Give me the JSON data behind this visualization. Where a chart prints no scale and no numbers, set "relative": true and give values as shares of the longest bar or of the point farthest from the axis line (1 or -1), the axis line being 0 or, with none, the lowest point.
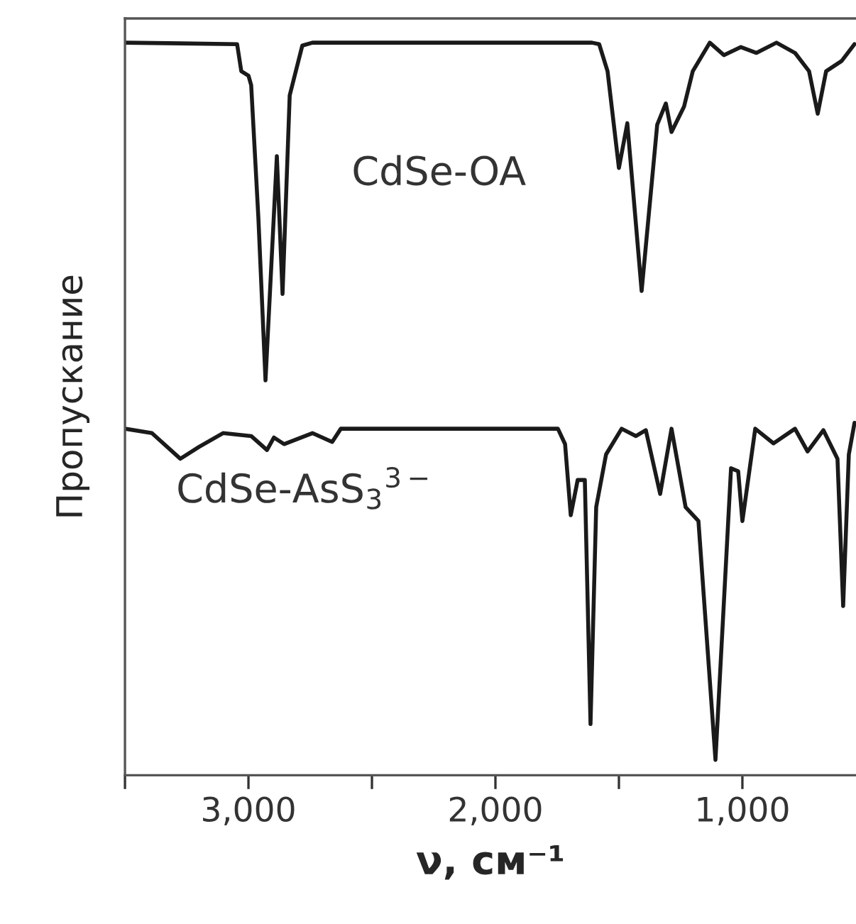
{
  "chart_data": {
    "type": "line",
    "relative": true,
    "xlabel": "ν, см⁻¹",
    "ylabel": "Пропускание",
    "xlim": [
      3500,
      540
    ],
    "xticks": [
      {
        "value": 3500,
        "label": null
      },
      {
        "value": 3000,
        "label": "3,000"
      },
      {
        "value": 2500,
        "label": null
      },
      {
        "value": 2000,
        "label": "2,000"
      },
      {
        "value": 1500,
        "label": null
      },
      {
        "value": 1000,
        "label": "1,000"
      }
    ],
    "tick_labels": "x",
    "grid": false,
    "legend": false,
    "marker": "none",
    "line_style": "solid",
    "series": [
      {
        "name": "CdSe-OA",
        "color": "#1a1a1a",
        "x": [
          3500,
          3046,
          3029,
          3000,
          2989,
          2960,
          2931,
          2885,
          2862,
          2833,
          2782,
          2741,
          1609,
          1580,
          1546,
          1500,
          1466,
          1408,
          1345,
          1310,
          1287,
          1236,
          1201,
          1132,
          1075,
          1006,
          943,
          862,
          787,
          730,
          695,
          661,
          598,
          546
        ],
        "values": [
          1.0,
          0.998,
          0.961,
          0.955,
          0.942,
          0.762,
          0.539,
          0.845,
          0.657,
          0.928,
          0.996,
          1.0,
          1.0,
          0.998,
          0.961,
          0.829,
          0.89,
          0.661,
          0.888,
          0.917,
          0.878,
          0.913,
          0.961,
          1.0,
          0.983,
          0.994,
          0.986,
          1.0,
          0.986,
          0.961,
          0.903,
          0.961,
          0.975,
          0.998
        ]
      },
      {
        "name": "CdSe-AsS$_{3}$$^{3−}$",
        "color": "#1a1a1a",
        "x": [
          3500,
          3391,
          3276,
          3201,
          3103,
          2989,
          2925,
          2897,
          2856,
          2741,
          2661,
          2626,
          1747,
          1718,
          1695,
          1667,
          1638,
          1615,
          1592,
          1552,
          1489,
          1431,
          1391,
          1333,
          1287,
          1230,
          1178,
          1109,
          1046,
          1017,
          1000,
          948,
          874,
          787,
          736,
          672,
          615,
          592,
          569,
          546
        ],
        "values": [
          0.473,
          0.467,
          0.432,
          0.448,
          0.467,
          0.463,
          0.444,
          0.461,
          0.452,
          0.467,
          0.455,
          0.473,
          0.473,
          0.452,
          0.355,
          0.403,
          0.403,
          0.07,
          0.366,
          0.438,
          0.473,
          0.463,
          0.471,
          0.384,
          0.473,
          0.366,
          0.347,
          0.021,
          0.419,
          0.415,
          0.347,
          0.473,
          0.453,
          0.473,
          0.442,
          0.471,
          0.432,
          0.231,
          0.438,
          0.481
        ]
      }
    ]
  }
}
